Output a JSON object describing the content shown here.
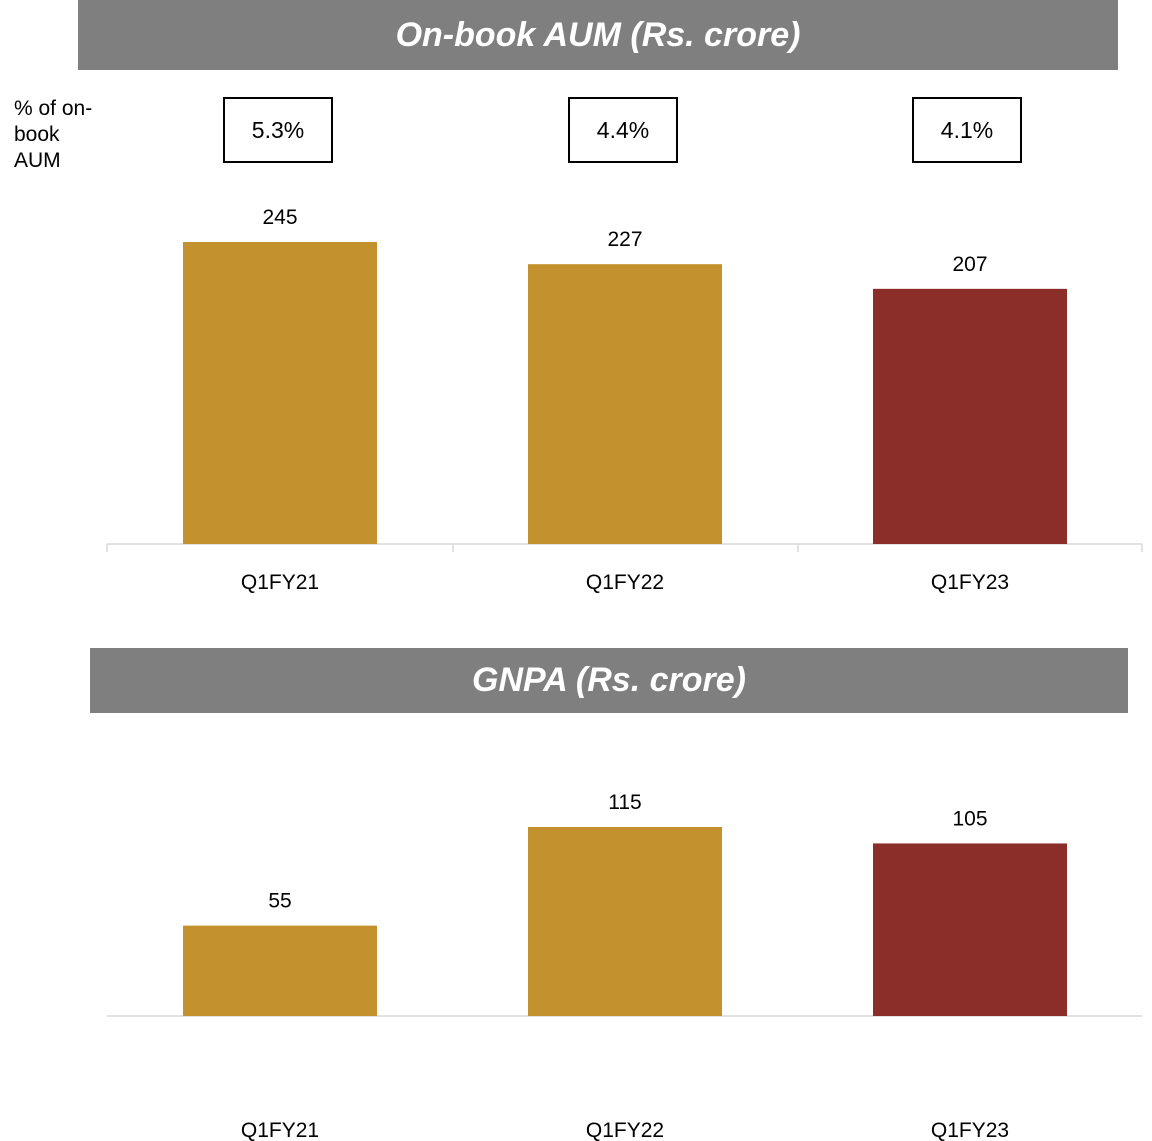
{
  "chart_data": [
    {
      "type": "bar",
      "title": "On-book AUM (Rs. crore)",
      "categories": [
        "Q1FY21",
        "Q1FY22",
        "Q1FY23"
      ],
      "values": [
        245,
        227,
        207
      ],
      "bar_colors": [
        "#c3922e",
        "#c3922e",
        "#8b2d29"
      ],
      "data_labels": [
        "245",
        "227",
        "207"
      ],
      "annotation_label": "% of on-\nbook\nAUM",
      "annotations": [
        "5.3%",
        "4.4%",
        "4.1%"
      ],
      "ylim": [
        0,
        245
      ],
      "grid": false,
      "legend": "none"
    },
    {
      "type": "bar",
      "title": "GNPA (Rs. crore)",
      "categories": [
        "Q1FY21",
        "Q1FY22",
        "Q1FY23"
      ],
      "values": [
        55,
        115,
        105
      ],
      "bar_colors": [
        "#c3922e",
        "#c3922e",
        "#8b2d29"
      ],
      "data_labels": [
        "55",
        "115",
        "105"
      ],
      "ylim": [
        0,
        115
      ],
      "grid": false,
      "legend": "none"
    }
  ],
  "colors": {
    "banner_bg": "#7f7f7f",
    "banner_text": "#ffffff",
    "bar_gold": "#c3922e",
    "bar_maroon": "#8b2d29",
    "axis": "#d9d9d9"
  }
}
